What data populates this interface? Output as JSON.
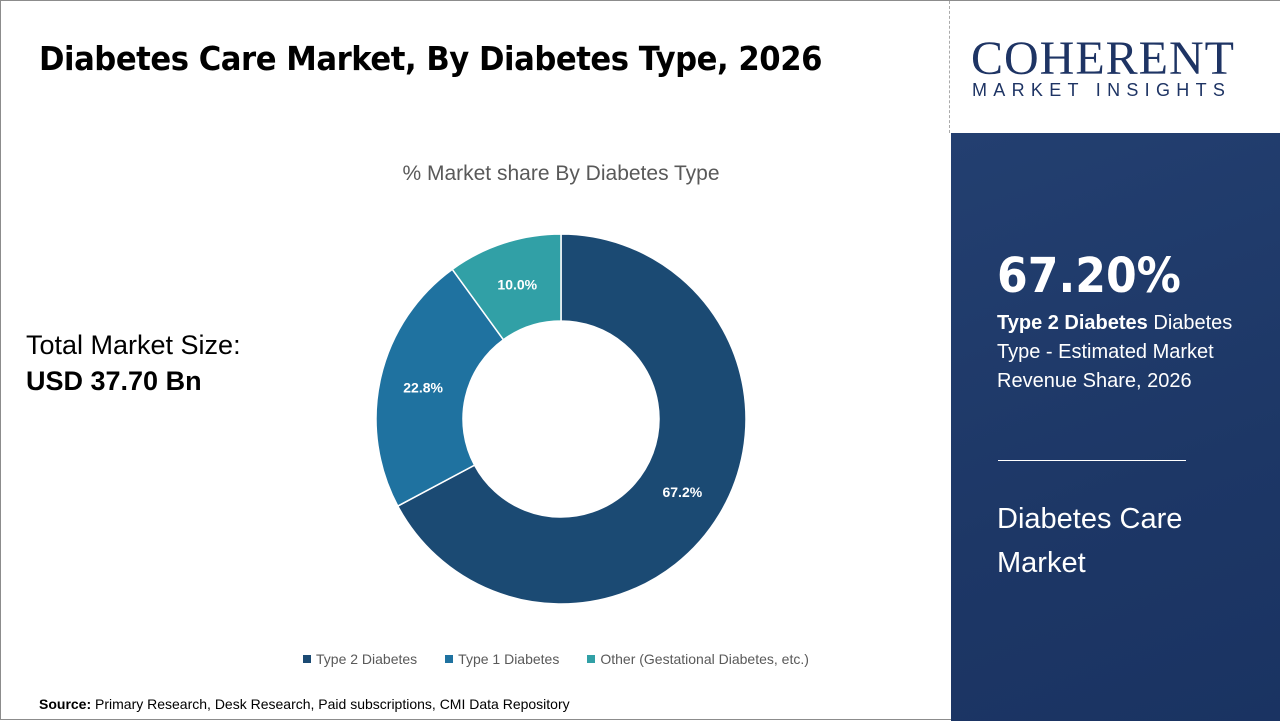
{
  "header": {
    "title": "Diabetes Care Market, By Diabetes Type, 2026"
  },
  "logo": {
    "main": "COHERENT",
    "sub": "MARKET INSIGHTS"
  },
  "total": {
    "label": "Total Market Size:",
    "value": "USD 37.70 Bn"
  },
  "panel": {
    "big": "67.20%",
    "desc_bold": "Type 2 Diabetes",
    "desc_rest": " Diabetes Type - Estimated Market Revenue Share, 2026",
    "market": "Diabetes Care Market"
  },
  "source": {
    "label": "Source:",
    "text": " Primary Research, Desk Research, Paid subscriptions, CMI Data Repository"
  },
  "chart_data": {
    "type": "pie",
    "donut": true,
    "title": "% Market share By Diabetes Type",
    "categories": [
      "Type 2 Diabetes",
      "Type 1 Diabetes",
      "Other (Gestational Diabetes, etc.)"
    ],
    "values": [
      67.2,
      22.8,
      10.0
    ],
    "labels": [
      "67.2%",
      "22.8%",
      "10.0%"
    ],
    "colors": [
      "#1b4a73",
      "#1f72a0",
      "#31a0a6"
    ],
    "legend": "bottom"
  }
}
